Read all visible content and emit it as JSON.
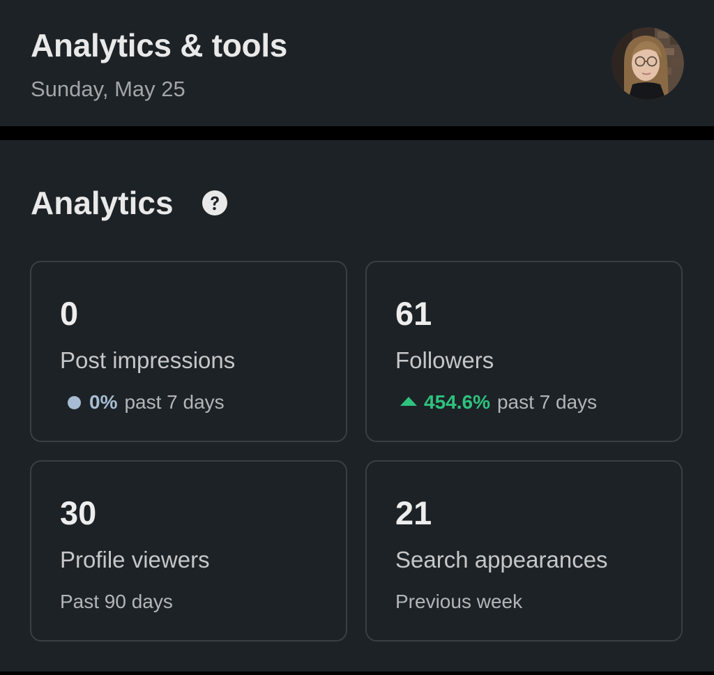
{
  "header": {
    "title": "Analytics & tools",
    "date": "Sunday, May 25",
    "avatar_icon": "user-avatar-icon"
  },
  "analytics": {
    "title": "Analytics",
    "help_icon": "question-circle-icon",
    "cards": [
      {
        "value": "0",
        "label": "Post impressions",
        "trend_icon": "neutral-dot-icon",
        "trend_value": "0%",
        "trend_period": "past 7 days",
        "trend_color": "#a7bdd4"
      },
      {
        "value": "61",
        "label": "Followers",
        "trend_icon": "up-triangle-icon",
        "trend_value": "454.6%",
        "trend_period": "past 7 days",
        "trend_color": "#2ec27e"
      },
      {
        "value": "30",
        "label": "Profile viewers",
        "subtitle": "Past 90 days"
      },
      {
        "value": "21",
        "label": "Search appearances",
        "subtitle": "Previous week"
      }
    ]
  },
  "colors": {
    "background": "#1d2226",
    "separator": "#000000",
    "card_border": "#3b3f43",
    "positive": "#2ec27e",
    "neutral": "#a7bdd4"
  }
}
